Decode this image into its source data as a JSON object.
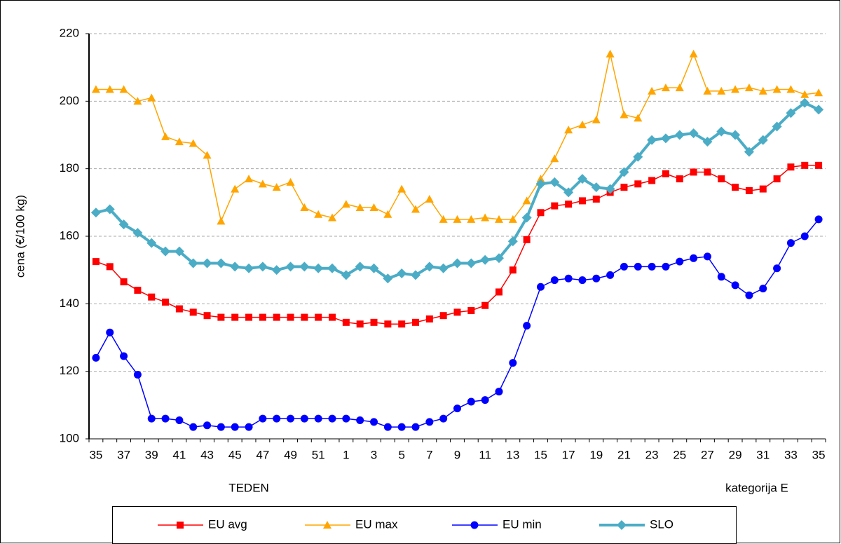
{
  "chart_data": {
    "type": "line",
    "y_label": "cena (€/100 kg)",
    "x_label": "TEDEN",
    "note": "kategorija E",
    "categories": [
      "35",
      null,
      "37",
      null,
      "39",
      null,
      "41",
      null,
      "43",
      null,
      "45",
      null,
      "47",
      null,
      "49",
      null,
      "51",
      null,
      "1",
      null,
      "3",
      null,
      "5",
      null,
      "7",
      null,
      "9",
      null,
      "11",
      null,
      "13",
      null,
      "15",
      null,
      "17",
      null,
      "19",
      null,
      "21",
      null,
      "23",
      null,
      "25",
      null,
      "27",
      null,
      "29",
      null,
      "31",
      null,
      "33",
      null,
      "35"
    ],
    "ylim": [
      100,
      220
    ],
    "yticks": [
      100,
      120,
      140,
      160,
      180,
      200,
      220
    ],
    "grid": true,
    "legend": "bottom",
    "series": [
      {
        "name": "EU avg",
        "color": "#ff0000",
        "marker": "square",
        "line_width": 1.5,
        "values": [
          152.5,
          151,
          146.5,
          144,
          142,
          140.5,
          138.5,
          137.5,
          136.5,
          136,
          136,
          136,
          136,
          136,
          136,
          136,
          136,
          136,
          134.5,
          134,
          134.5,
          134,
          134,
          134.5,
          135.5,
          136.5,
          137.5,
          138,
          139.5,
          143.5,
          150,
          159,
          167,
          169,
          169.5,
          170.5,
          171,
          173,
          174.5,
          175.5,
          176.5,
          178.5,
          177,
          179,
          179,
          177,
          174.5,
          173.5,
          174,
          177,
          180.5,
          181,
          181
        ]
      },
      {
        "name": "EU max",
        "color": "#ffa500",
        "marker": "triangle",
        "line_width": 1.5,
        "values": [
          203.5,
          203.5,
          203.5,
          200,
          201,
          189.5,
          188,
          187.5,
          184,
          164.5,
          174,
          177,
          175.5,
          174.5,
          176,
          168.5,
          166.5,
          165.5,
          169.5,
          168.5,
          168.5,
          166.5,
          174,
          168,
          171,
          165,
          165,
          165,
          165.5,
          165,
          165,
          170.5,
          177,
          183,
          191.5,
          193,
          194.5,
          214,
          196,
          195,
          203,
          204,
          204,
          214,
          203,
          203,
          203.5,
          204,
          203,
          203.5,
          203.5,
          202,
          202.5
        ]
      },
      {
        "name": "EU min",
        "color": "#0000ff",
        "marker": "circle",
        "line_width": 1.5,
        "values": [
          124,
          131.5,
          124.5,
          119,
          106,
          106,
          105.5,
          103.5,
          104,
          103.5,
          103.5,
          103.5,
          106,
          106,
          106,
          106,
          106,
          106,
          106,
          105.5,
          105,
          103.5,
          103.5,
          103.5,
          105,
          106,
          109,
          111,
          111.5,
          114,
          122.5,
          133.5,
          145,
          147,
          147.5,
          147,
          147.5,
          148.5,
          151,
          151,
          151,
          151,
          152.5,
          153.5,
          154,
          148,
          145.5,
          142.5,
          144.5,
          150.5,
          158,
          160,
          165
        ]
      },
      {
        "name": "SLO",
        "color": "#4bacc6",
        "marker": "diamond",
        "line_width": 4,
        "values": [
          167,
          168,
          163.5,
          161,
          158,
          155.5,
          155.5,
          152,
          152,
          152,
          151,
          150.5,
          151,
          150,
          151,
          151,
          150.5,
          150.5,
          148.5,
          151,
          150.5,
          147.5,
          149,
          148.5,
          151,
          150.5,
          152,
          152,
          153,
          153.5,
          158.5,
          165.5,
          175.5,
          176,
          173,
          177,
          174.5,
          174,
          179,
          183.5,
          188.5,
          189,
          190,
          190.5,
          188,
          191,
          190,
          185,
          188.5,
          192.5,
          196.5,
          199.5,
          197.5
        ]
      }
    ]
  }
}
